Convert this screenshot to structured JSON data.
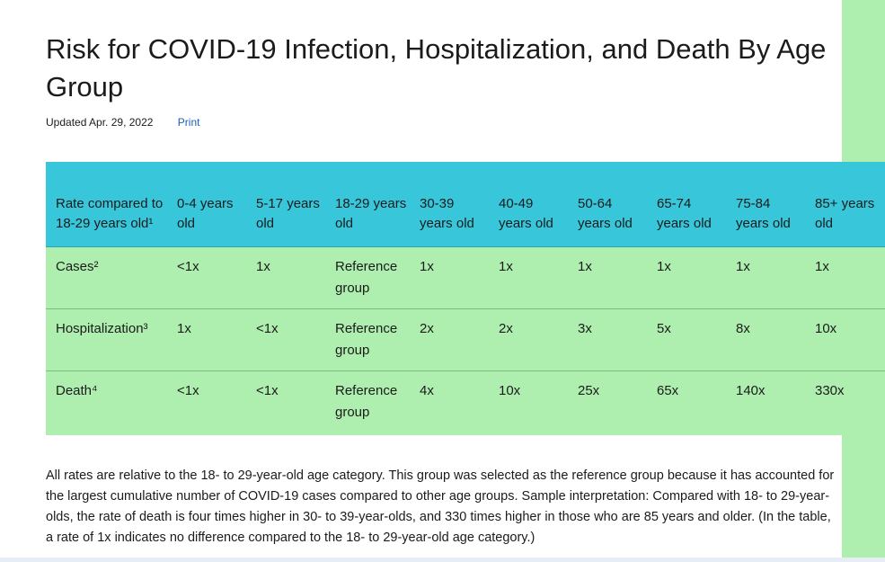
{
  "page": {
    "title": "Risk for COVID-19 Infection, Hospitalization, and Death By Age Group",
    "updated": "Updated Apr. 29, 2022",
    "print_label": "Print"
  },
  "table": {
    "headers": [
      "Rate compared to 18-29 years old¹",
      "0-4 years old",
      "5-17 years old",
      "18-29 years old",
      "30-39 years old",
      "40-49 years old",
      "50-64 years old",
      "65-74 years old",
      "75-84 years old",
      "85+ years old"
    ],
    "rows": [
      {
        "label": "Cases²",
        "cells": [
          "<1x",
          "1x",
          "Reference group",
          "1x",
          "1x",
          "1x",
          "1x",
          "1x",
          "1x"
        ]
      },
      {
        "label": "Hospitalization³",
        "cells": [
          "1x",
          "<1x",
          "Reference group",
          "2x",
          "2x",
          "3x",
          "5x",
          "8x",
          "10x"
        ]
      },
      {
        "label": "Death⁴",
        "cells": [
          "<1x",
          "<1x",
          "Reference group",
          "4x",
          "10x",
          "25x",
          "65x",
          "140x",
          "330x"
        ]
      }
    ]
  },
  "note": "All rates are relative to the 18- to 29-year-old age category. This group was selected as the reference group because it has accounted for the largest cumulative number of COVID-19 cases compared to other age groups. Sample interpretation: Compared with 18- to 29-year-olds, the rate of death is four times higher in 30- to 39-year-olds, and 330 times higher in those who are 85 years and older. (In the table, a rate of 1x indicates no difference compared to the 18- to 29-year-old age category.)",
  "colors": {
    "header_bg": "#38c6da",
    "body_bg": "#aeefb0",
    "link": "#1c5fb5"
  }
}
